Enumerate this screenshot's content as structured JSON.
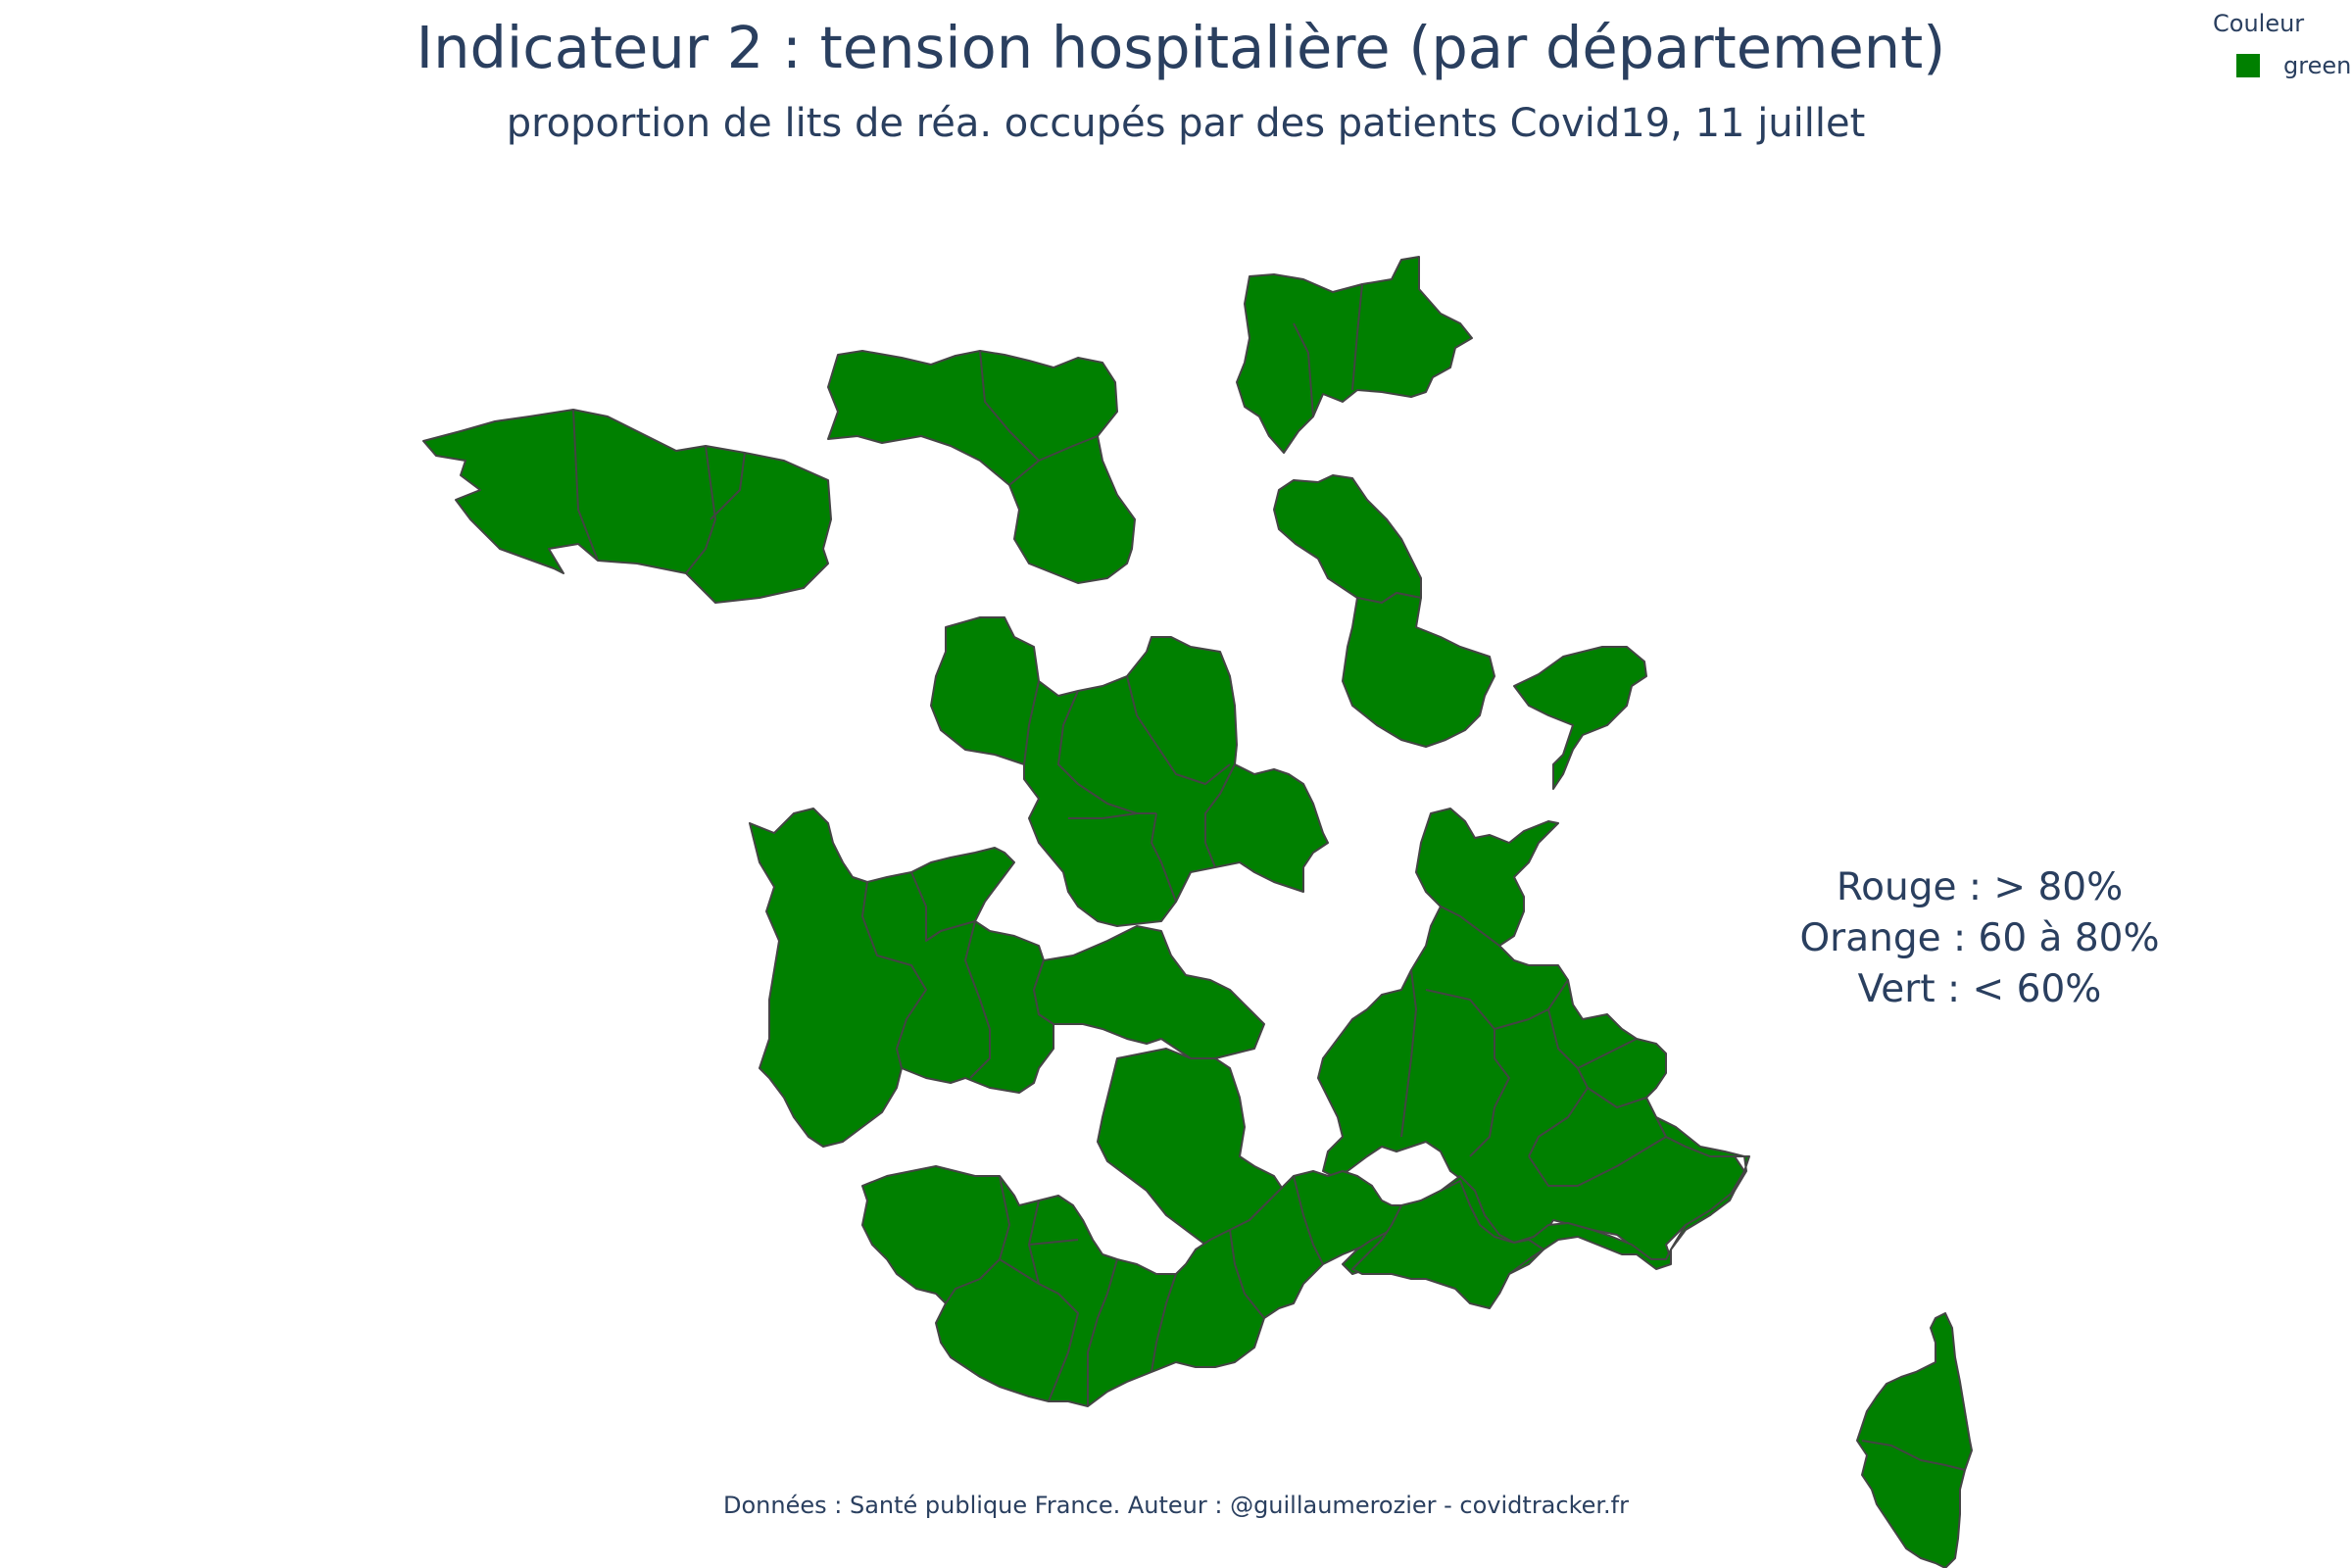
{
  "title": "Indicateur 2 : tension hospitalière (par département)",
  "subtitle": "proportion de lits de réa. occupés par des patients Covid19, 11 juillet",
  "legend": {
    "title": "Couleur",
    "items": [
      {
        "label": "green",
        "color": "#008000"
      }
    ]
  },
  "note": {
    "lines": [
      "Rouge : > 80%",
      "Orange : 60 à 80%",
      "Vert : < 60%"
    ]
  },
  "source": "Données : Santé publique France. Auteur : @guillaumerozier - covidtracker.fr",
  "colors": {
    "fill": "#008000",
    "border": "#444444",
    "text": "#2a3f5f"
  }
}
